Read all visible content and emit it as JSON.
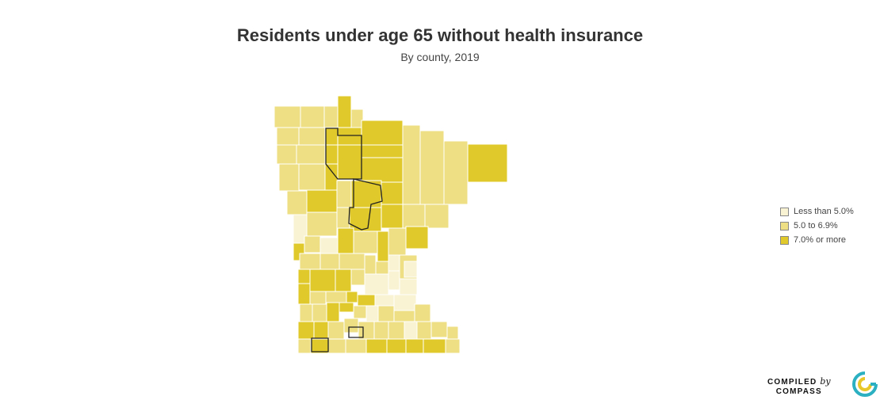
{
  "title": "Residents under age 65 without health insurance",
  "subtitle": "By county, 2019",
  "legend": [
    {
      "label": "Less than 5.0%",
      "color": "#faf3d3"
    },
    {
      "label": "5.0 to 6.9%",
      "color": "#eedf84"
    },
    {
      "label": "7.0% or more",
      "color": "#e0c92b"
    }
  ],
  "credit": {
    "compiled": "COMPILED",
    "by": "by",
    "compass": "COMPASS"
  },
  "colors": {
    "border": "#ffffff",
    "highlight": "#222222",
    "logo_teal": "#2ab0c1",
    "logo_yellow": "#e7c72a"
  }
}
